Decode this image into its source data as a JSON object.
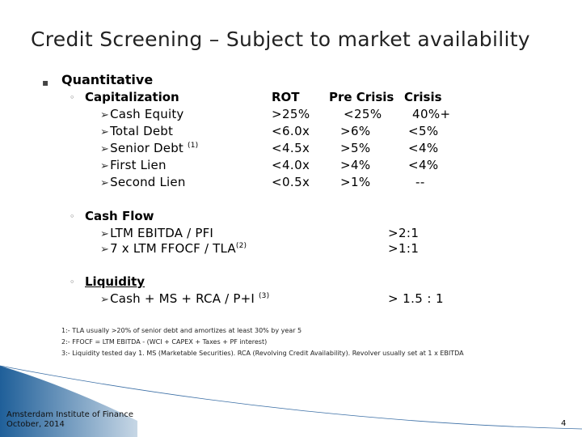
{
  "title": "Credit Screening – Subject to market availability",
  "quantitative": {
    "label": "Quantitative",
    "capitalization": {
      "label": "Capitalization",
      "headers": {
        "rot": "ROT",
        "pre_crisis": "Pre Crisis",
        "crisis": "Crisis"
      },
      "rows": [
        {
          "label": "Cash Equity",
          "sup": "",
          "rot": ">25%",
          "pre": "<25%",
          "crisis": "40%+"
        },
        {
          "label": "Total Debt",
          "sup": "",
          "rot": "<6.0x",
          "pre": ">6%",
          "crisis": "<5%"
        },
        {
          "label": "Senior Debt",
          "sup": "(1)",
          "rot": "<4.5x",
          "pre": ">5%",
          "crisis": "<4%"
        },
        {
          "label": "First Lien",
          "sup": "",
          "rot": "<4.0x",
          "pre": ">4%",
          "crisis": "<4%"
        },
        {
          "label": "Second Lien",
          "sup": "",
          "rot": "<0.5x",
          "pre": ">1%",
          "crisis": "--"
        }
      ]
    },
    "cash_flow": {
      "label": "Cash Flow",
      "rows": [
        {
          "label": "LTM EBITDA / PFI",
          "sup": "",
          "value": ">2:1"
        },
        {
          "label": "7 x LTM FFOCF / TLA",
          "sup": "(2)",
          "value": ">1:1"
        }
      ]
    },
    "liquidity": {
      "label": "Liquidity",
      "rows": [
        {
          "label": "Cash + MS + RCA / P+I",
          "sup": "(3)",
          "value": "> 1.5 : 1"
        }
      ]
    }
  },
  "footnotes": [
    "1:- TLA usually >20% of senior debt and amortizes at least 30% by year 5",
    "2:- FFOCF = LTM EBITDA - (WCI + CAPEX + Taxes + PF interest)",
    "3:- Liquidity tested day 1. MS (Marketable Securities). RCA (Revolving Credit Availability). Revolver usually set at 1 x EBITDA"
  ],
  "footer": {
    "line1": "Amsterdam Institute of Finance",
    "line2": "October, 2014"
  },
  "page_number": "4",
  "colors": {
    "accent": "#1f5f99",
    "title": "#222222"
  },
  "icons": {
    "bullet": "small-square-bullet",
    "sub_bullet": "circle-bullet",
    "item_bullet": "chevron-arrow"
  }
}
